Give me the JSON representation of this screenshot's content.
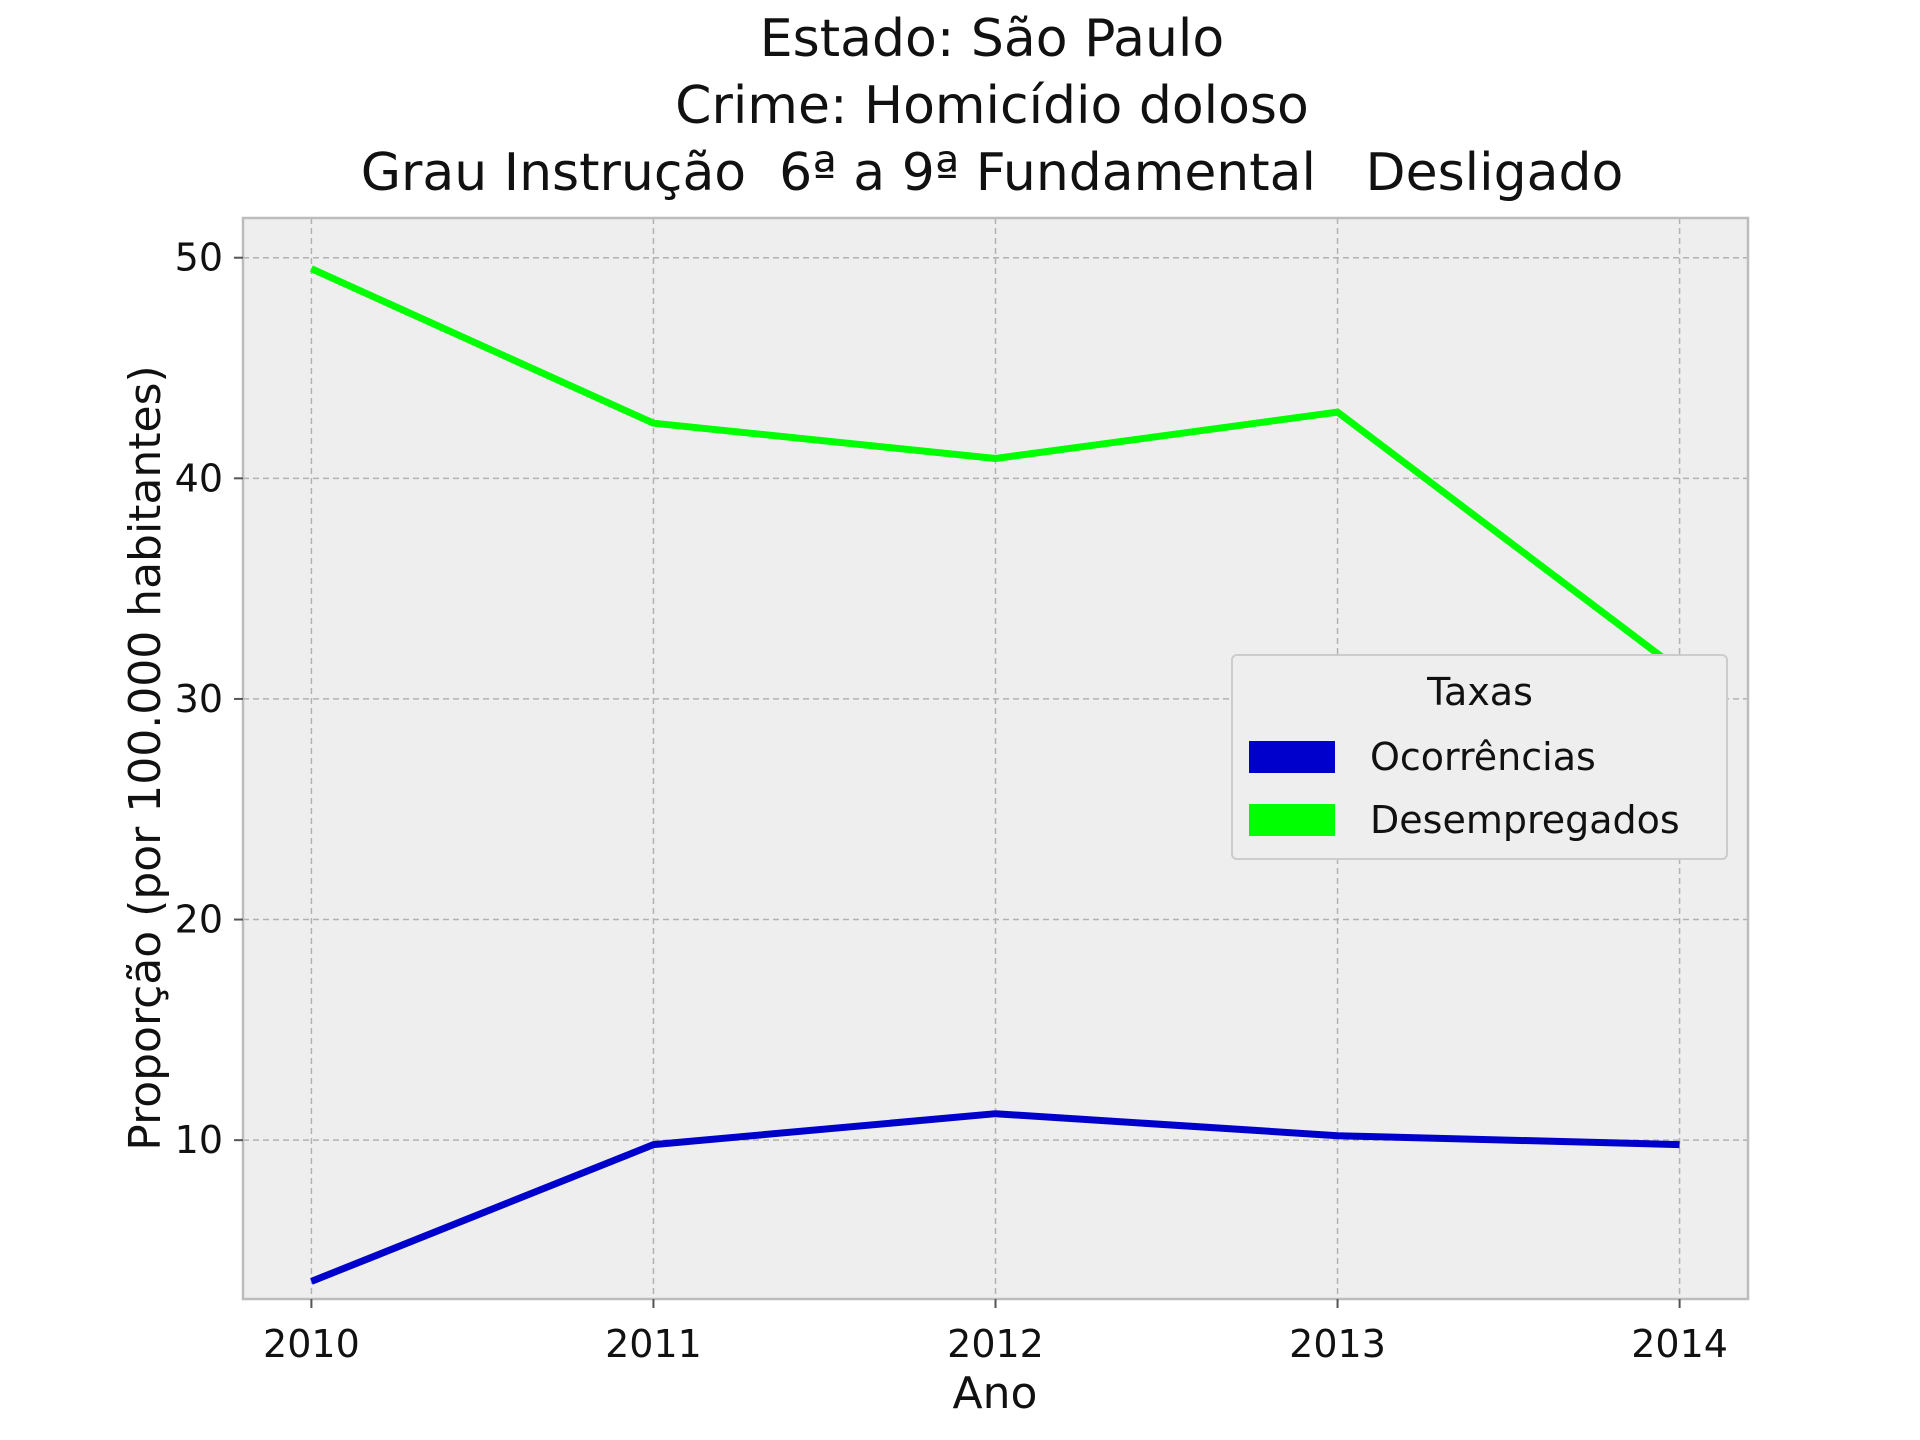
{
  "chart_data": {
    "type": "line",
    "title_lines": [
      "Estado: São Paulo",
      "Crime: Homicídio doloso",
      "Grau Instrução  6ª a 9ª Fundamental   Desligado"
    ],
    "xlabel": "Ano",
    "ylabel": "Proporção (por 100.000 habitantes)",
    "x": [
      2010,
      2011,
      2012,
      2013,
      2014
    ],
    "x_tick_labels": [
      "2010",
      "2011",
      "2012",
      "2013",
      "2014"
    ],
    "xlim": [
      2009.8,
      2014.2
    ],
    "ylim": [
      2.8,
      51.8
    ],
    "y_ticks": [
      10,
      20,
      30,
      40,
      50
    ],
    "y_tick_labels": [
      "10",
      "20",
      "30",
      "40",
      "50"
    ],
    "grid": true,
    "legend": {
      "title": "Taxas",
      "placement": "center-right"
    },
    "series": [
      {
        "name": "Ocorrências",
        "color": "#0000cc",
        "values": [
          3.6,
          9.8,
          11.2,
          10.2,
          9.8
        ]
      },
      {
        "name": "Desempregados",
        "color": "#00ff00",
        "values": [
          49.5,
          42.5,
          40.9,
          43.0,
          31.3
        ]
      }
    ]
  }
}
